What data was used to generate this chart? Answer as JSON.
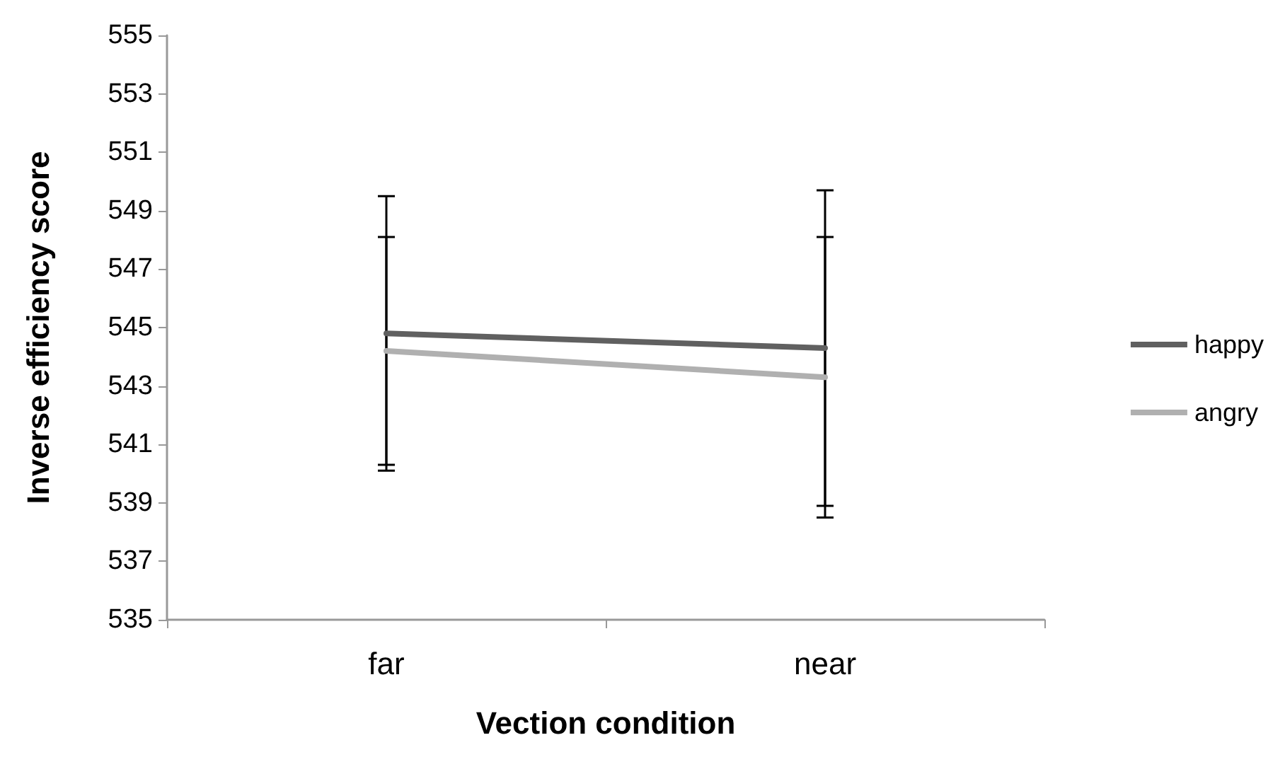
{
  "chart_data": {
    "type": "line",
    "xlabel": "Vection condition",
    "ylabel": "Inverse efficiency score",
    "categories": [
      "far",
      "near"
    ],
    "series": [
      {
        "name": "happy",
        "color": "#606060",
        "values": [
          544.8,
          544.3
        ],
        "errors": [
          4.7,
          5.4
        ]
      },
      {
        "name": "angry",
        "color": "#b0b0b0",
        "values": [
          544.2,
          543.3
        ],
        "errors": [
          3.9,
          4.8
        ]
      }
    ],
    "ylim": [
      535,
      555
    ],
    "yticks": [
      535,
      537,
      539,
      541,
      543,
      545,
      547,
      549,
      551,
      553,
      555
    ],
    "grid": false,
    "legend": "right",
    "marker": "none",
    "line_style": "solid"
  }
}
